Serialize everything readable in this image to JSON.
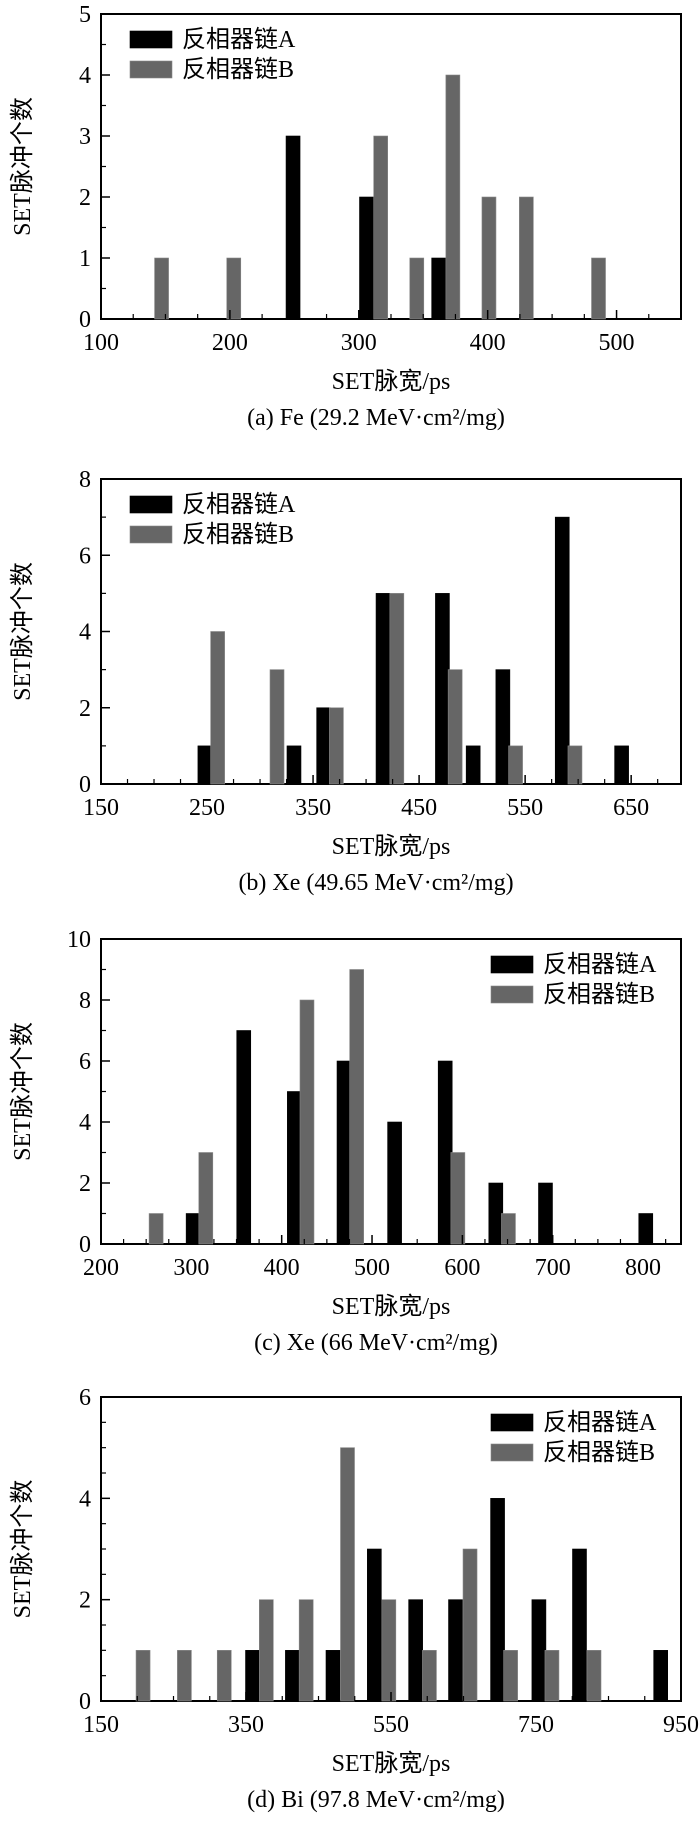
{
  "colors": {
    "series_a": "#000000",
    "series_b": "#666666",
    "axis": "#000000"
  },
  "chart_data": [
    {
      "type": "bar",
      "panel": "a",
      "caption": "(a) Fe (29.2 MeV·cm²/mg)",
      "xlabel": "SET脉宽/ps",
      "ylabel": "SET脉冲个数",
      "xlim": [
        100,
        550
      ],
      "ylim": [
        0,
        5
      ],
      "xticks": [
        100,
        200,
        300,
        400,
        500
      ],
      "xtick_labels": [
        "100",
        "200",
        "300",
        "400",
        "500"
      ],
      "x_minor_step": 25,
      "yticks": [
        0,
        1,
        2,
        3,
        4,
        5
      ],
      "ytick_labels": [
        "0",
        "1",
        "2",
        "3",
        "4",
        "5"
      ],
      "y_minor_step": 0.5,
      "legend_position": "top-left",
      "series": [
        {
          "name": "反相器链A",
          "x": [
            249,
            306,
            362
          ],
          "values": [
            3,
            2,
            1
          ]
        },
        {
          "name": "反相器链B",
          "x": [
            147,
            203,
            317,
            345,
            373,
            401,
            430,
            486
          ],
          "values": [
            1,
            1,
            3,
            1,
            4,
            2,
            2,
            1
          ]
        }
      ]
    },
    {
      "type": "bar",
      "panel": "b",
      "caption": "(b) Xe (49.65 MeV·cm²/mg)",
      "xlabel": "SET脉宽/ps",
      "ylabel": "SET脉冲个数",
      "xlim": [
        150,
        697
      ],
      "ylim": [
        0,
        8
      ],
      "xticks": [
        150,
        250,
        350,
        450,
        550,
        650
      ],
      "xtick_labels": [
        "150",
        "250",
        "350",
        "450",
        "550",
        "650"
      ],
      "x_minor_step": 25,
      "yticks": [
        0,
        2,
        4,
        6,
        8
      ],
      "ytick_labels": [
        "0",
        "2",
        "4",
        "6",
        "8"
      ],
      "y_minor_step": 1,
      "legend_position": "top-left",
      "series": [
        {
          "name": "反相器链A",
          "x": [
            248,
            332,
            360,
            416,
            472,
            501,
            529,
            585,
            641
          ],
          "values": [
            1,
            1,
            2,
            5,
            5,
            1,
            3,
            7,
            1
          ]
        },
        {
          "name": "反相器链B",
          "x": [
            260,
            316,
            372,
            429,
            484,
            541,
            597
          ],
          "values": [
            4,
            3,
            2,
            5,
            3,
            1,
            1
          ]
        }
      ]
    },
    {
      "type": "bar",
      "panel": "c",
      "caption": "(c) Xe (66 MeV·cm²/mg)",
      "xlabel": "SET脉宽/ps",
      "ylabel": "SET脉冲个数",
      "xlim": [
        200,
        842
      ],
      "ylim": [
        0,
        10
      ],
      "xticks": [
        200,
        300,
        400,
        500,
        600,
        700,
        800
      ],
      "xtick_labels": [
        "200",
        "300",
        "400",
        "500",
        "600",
        "700",
        "800"
      ],
      "x_minor_step": 25,
      "yticks": [
        0,
        2,
        4,
        6,
        8,
        10
      ],
      "ytick_labels": [
        "0",
        "2",
        "4",
        "6",
        "8",
        "10"
      ],
      "y_minor_step": 1,
      "legend_position": "top-right",
      "series": [
        {
          "name": "反相器链A",
          "x": [
            302,
            358,
            414,
            469,
            525,
            581,
            637,
            692,
            803
          ],
          "values": [
            1,
            7,
            5,
            6,
            4,
            6,
            2,
            2,
            1
          ]
        },
        {
          "name": "反相器链B",
          "x": [
            261,
            316,
            428,
            483,
            595,
            651
          ],
          "values": [
            1,
            3,
            8,
            9,
            3,
            1
          ]
        }
      ]
    },
    {
      "type": "bar",
      "panel": "d",
      "caption": "(d) Bi (97.8 MeV·cm²/mg)",
      "xlabel": "SET脉宽/ps",
      "ylabel": "SET脉冲个数",
      "xlim": [
        150,
        950
      ],
      "ylim": [
        0,
        6
      ],
      "xticks": [
        150,
        350,
        550,
        750,
        950
      ],
      "xtick_labels": [
        "150",
        "350",
        "550",
        "750",
        "950"
      ],
      "x_minor_step": 50,
      "yticks": [
        0,
        2,
        4,
        6
      ],
      "ytick_labels": [
        "0",
        "2",
        "4",
        "6"
      ],
      "y_minor_step": 0.5,
      "legend_position": "top-right",
      "series": [
        {
          "name": "反相器链A",
          "x": [
            359,
            414,
            470,
            527,
            584,
            639,
            697,
            754,
            810,
            922
          ],
          "values": [
            1,
            1,
            1,
            3,
            2,
            2,
            4,
            2,
            3,
            1
          ]
        },
        {
          "name": "反相器链B",
          "x": [
            208,
            265,
            320,
            378,
            433,
            490,
            547,
            603,
            659,
            715,
            772,
            830
          ],
          "values": [
            1,
            1,
            1,
            2,
            2,
            5,
            2,
            1,
            3,
            1,
            1,
            1
          ]
        }
      ]
    }
  ]
}
